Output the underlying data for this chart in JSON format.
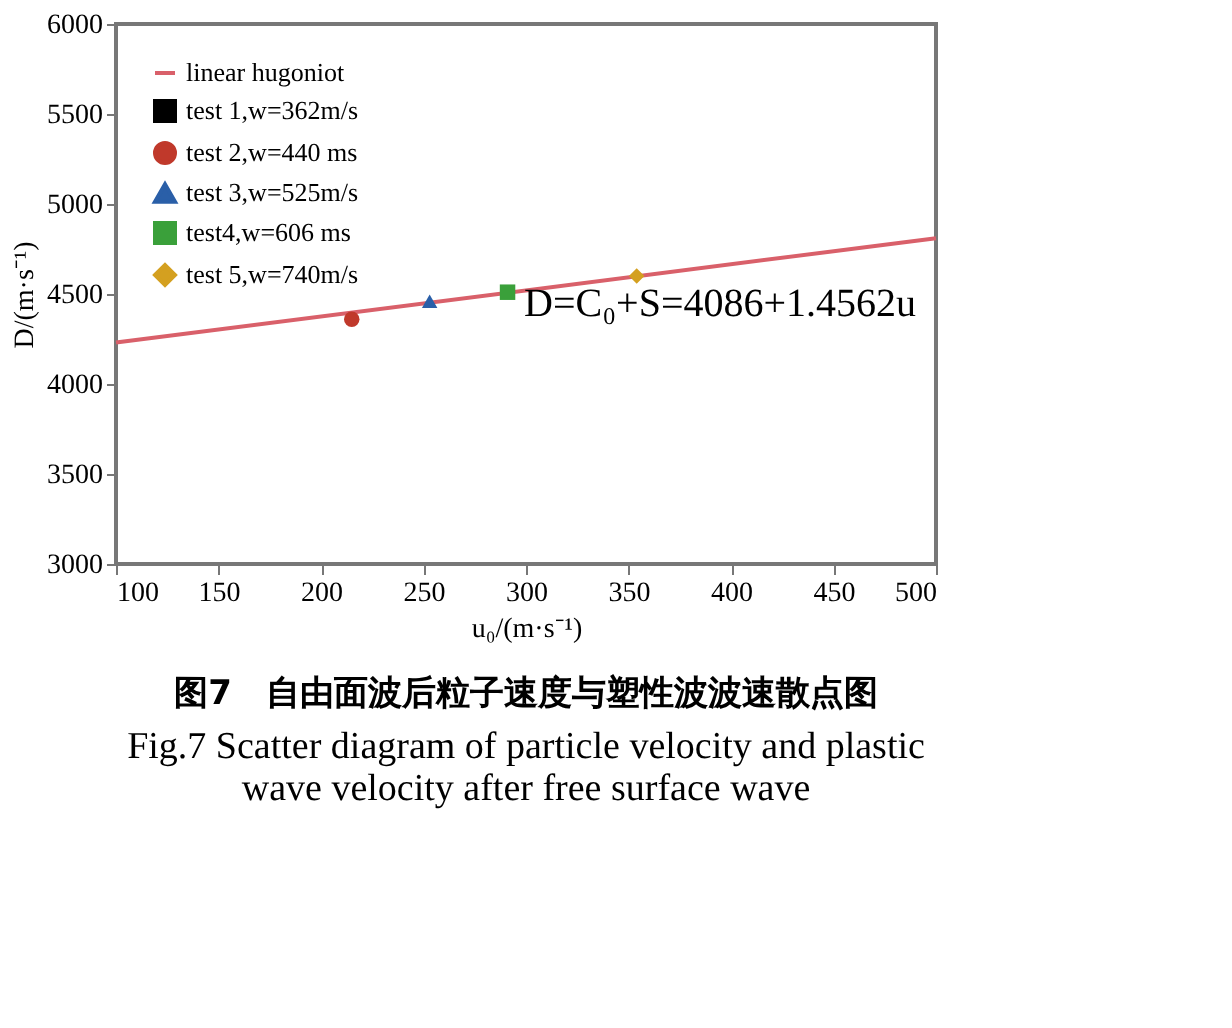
{
  "chart_data": {
    "type": "scatter",
    "title": "图7　自由面波后粒子速度与塑性波波速散点图",
    "subtitle": "Fig.7 Scatter diagram of particle velocity and plastic wave velocity after free surface wave",
    "xlabel": "u₀/(m·s⁻¹)",
    "ylabel": "D/(m·s⁻¹)",
    "xlim": [
      100,
      500
    ],
    "xticks": [
      100,
      150,
      200,
      250,
      300,
      350,
      400,
      450,
      500
    ],
    "ylim": [
      3000,
      6000
    ],
    "yticks": [
      3000,
      3500,
      4000,
      4500,
      5000,
      5500,
      6000
    ],
    "grid": false,
    "legend": "top left",
    "annotations": [
      "D=C₀+S=4086+1.4562u"
    ],
    "series": [
      {
        "name": "linear hugoniot",
        "type": "line",
        "color": "#d9606a",
        "x": [
          100,
          500
        ],
        "values": [
          4230,
          4810
        ]
      },
      {
        "name": "test 1,w=362m/s",
        "color": "#000000",
        "marker": "square",
        "x": [
          null
        ],
        "values": [
          null
        ]
      },
      {
        "name": "test 2,w=440 ms",
        "color": "#c0392b",
        "marker": "circle",
        "x": [
          215
        ],
        "values": [
          4360
        ]
      },
      {
        "name": "test 3,w=525m/s",
        "color": "#2a5fa8",
        "marker": "triangle",
        "x": [
          253
        ],
        "values": [
          4460
        ]
      },
      {
        "name": "test4,w=606 ms",
        "color": "#3aa03a",
        "marker": "square",
        "x": [
          291
        ],
        "values": [
          4510
        ]
      },
      {
        "name": "test 5,w=740m/s",
        "color": "#d4a020",
        "marker": "diamond",
        "x": [
          354
        ],
        "values": [
          4600
        ]
      }
    ]
  }
}
